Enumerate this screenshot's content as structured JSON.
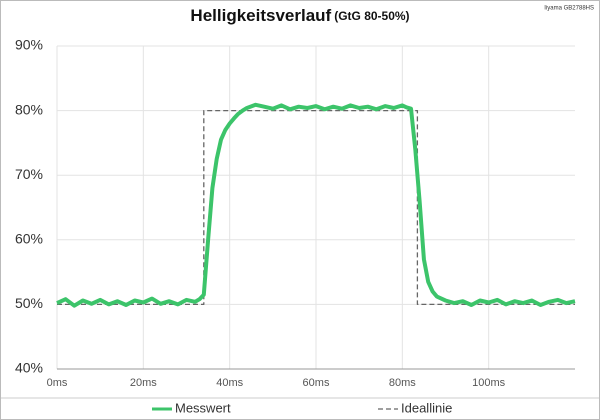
{
  "chart_data": {
    "type": "line",
    "title": "Helligkeitsverlauf",
    "subtitle": "(GtG 80-50%)",
    "annotation": "Iiyama GB2788HS",
    "xlim": [
      0,
      120
    ],
    "ylim": [
      40,
      90
    ],
    "xticks": [
      {
        "value": 0,
        "label": "0ms"
      },
      {
        "value": 20,
        "label": "20ms"
      },
      {
        "value": 40,
        "label": "40ms"
      },
      {
        "value": 60,
        "label": "60ms"
      },
      {
        "value": 80,
        "label": "80ms"
      },
      {
        "value": 100,
        "label": "100ms"
      }
    ],
    "yticks": [
      {
        "value": 40,
        "label": "40%"
      },
      {
        "value": 50,
        "label": "50%"
      },
      {
        "value": 60,
        "label": "60%"
      },
      {
        "value": 70,
        "label": "70%"
      },
      {
        "value": 80,
        "label": "80%"
      },
      {
        "value": 90,
        "label": "90%"
      }
    ],
    "grid": true,
    "legend": "bottom",
    "series": [
      {
        "name": "Messwert",
        "color": "#3cc46a",
        "dashed": false,
        "x": [
          0,
          2,
          4,
          6,
          8,
          10,
          12,
          14,
          16,
          18,
          20,
          22,
          24,
          26,
          28,
          30,
          32,
          33,
          34,
          35,
          36,
          37,
          38,
          39,
          40,
          41,
          42,
          43,
          44,
          46,
          48,
          50,
          52,
          54,
          56,
          58,
          60,
          62,
          64,
          66,
          68,
          70,
          72,
          74,
          76,
          78,
          80,
          81,
          82,
          83,
          84,
          85,
          86,
          87,
          88,
          90,
          92,
          94,
          96,
          98,
          100,
          102,
          104,
          106,
          108,
          110,
          112,
          114,
          116,
          118,
          120
        ],
        "values": [
          50.2,
          50.8,
          49.8,
          50.6,
          50.1,
          50.7,
          50.0,
          50.5,
          49.9,
          50.6,
          50.3,
          50.9,
          50.1,
          50.5,
          50.0,
          50.7,
          50.4,
          50.8,
          51.5,
          60,
          68,
          72.5,
          75.5,
          77,
          78,
          78.8,
          79.5,
          80,
          80.4,
          80.9,
          80.6,
          80.3,
          80.8,
          80.2,
          80.6,
          80.4,
          80.7,
          80.2,
          80.6,
          80.3,
          80.8,
          80.4,
          80.6,
          80.2,
          80.7,
          80.4,
          80.8,
          80.5,
          80.3,
          74,
          66,
          57,
          53.5,
          52,
          51.2,
          50.6,
          50.2,
          50.5,
          49.9,
          50.6,
          50.3,
          50.7,
          50.0,
          50.5,
          50.2,
          50.6,
          49.9,
          50.4,
          50.7,
          50.2,
          50.5
        ]
      },
      {
        "name": "Ideallinie",
        "color": "#666666",
        "dashed": true,
        "x": [
          0,
          34,
          34,
          83.5,
          83.5,
          120
        ],
        "values": [
          50,
          50,
          80,
          80,
          50,
          50
        ]
      }
    ]
  }
}
